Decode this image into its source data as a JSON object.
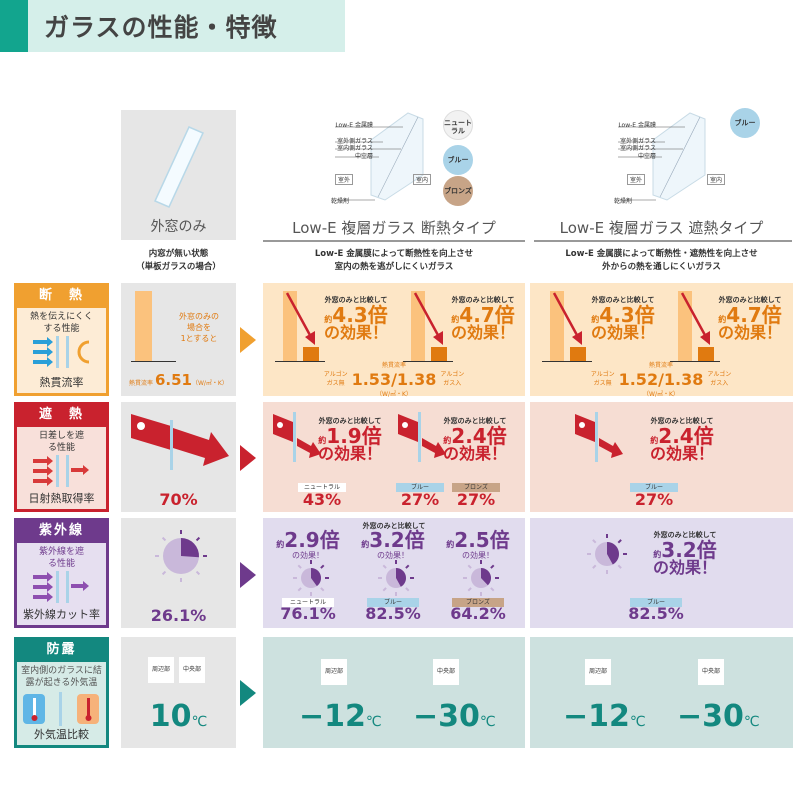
{
  "title": "ガラスの性能・特徴",
  "columns": [
    {
      "name": "外窓のみ",
      "desc": [
        "内窓が無い状態",
        "（単板ガラスの場合）"
      ]
    },
    {
      "name": "Low-E 複層ガラス 断熱タイプ",
      "desc": [
        "Low-E 金属膜によって断熱性を向上させ",
        "室内の熱を逃がしにくいガラス"
      ],
      "diagram": {
        "labels": [
          "Low-E 金属膜",
          "室外側ガラス",
          "室内側ガラス",
          "中空層",
          "室外",
          "室内",
          "乾燥剤"
        ],
        "colors": [
          {
            "label": "ニュートラル",
            "hex": "#f2f2f2"
          },
          {
            "label": "ブルー",
            "hex": "#a9d3e8"
          },
          {
            "label": "ブロンズ",
            "hex": "#c7a487"
          }
        ]
      }
    },
    {
      "name": "Low-E 複層ガラス 遮熱タイプ",
      "desc": [
        "Low-E 金属膜によって断熱性・遮熱性を向上させ",
        "外からの熱を通しにくいガラス"
      ],
      "diagram": {
        "labels": [
          "Low-E 金属膜",
          "室外側ガラス",
          "室内側ガラス",
          "中空層",
          "室外",
          "室内",
          "乾燥剤"
        ],
        "colors": [
          {
            "label": "ブルー",
            "hex": "#a9d3e8"
          }
        ]
      }
    }
  ],
  "compare": "外窓のみと比較して",
  "approx": "約",
  "effect": "の効果！",
  "rows": {
    "insulation": {
      "title": "断　熱",
      "body": "熱を伝えにくくする性能",
      "footer": "熱貫流率",
      "note": "※1※2",
      "color": "#f0a030",
      "single": {
        "text": [
          "外窓のみの",
          "場合を",
          "1とすると"
        ],
        "label": "熱貫流率",
        "value": "6.51",
        "note": "※3",
        "unit": "（W/㎡・K）"
      },
      "heat_ins": {
        "mult": [
          "4.3倍",
          "4.7倍"
        ],
        "label": "熱貫流率",
        "argon_none": "アルゴンガス無",
        "value": "1.53/1.38",
        "argon": "アルゴンガス入",
        "unit": "（W/㎡・K）"
      },
      "heat_shield": {
        "mult": [
          "4.3倍",
          "4.7倍"
        ],
        "label": "熱貫流率",
        "argon_none": "アルゴンガス無",
        "value": "1.52/1.38",
        "argon": "アルゴンガス入",
        "unit": "（W/㎡・K）"
      }
    },
    "shading": {
      "title": "遮　熱",
      "body": "日差しを遮る性能",
      "footer": "日射熱取得率",
      "note": "※4",
      "color": "#c9222e",
      "single": {
        "value": "70%"
      },
      "heat_ins": {
        "mult": [
          "1.9倍",
          "2.4倍"
        ],
        "tags": [
          "ニュートラル",
          "ブルー",
          "ブロンズ"
        ],
        "values": [
          "43%",
          "27%",
          "27%"
        ]
      },
      "heat_shield": {
        "mult": "2.4倍",
        "tag": "ブルー",
        "value": "27%"
      }
    },
    "uv": {
      "title": "紫外線",
      "body": "紫外線を遮る性能",
      "footer": "紫外線カット率",
      "note": "※5",
      "color": "#6e3a8c",
      "single": {
        "value": "26.1%"
      },
      "heat_ins": {
        "mult": [
          "2.9倍",
          "3.2倍",
          "2.5倍"
        ],
        "tags": [
          "ニュートラル",
          "ブルー",
          "ブロンズ"
        ],
        "values": [
          "76.1%",
          "82.5%",
          "64.2%"
        ]
      },
      "heat_shield": {
        "mult": "3.2倍",
        "tag": "ブルー",
        "value": "82.5%"
      }
    },
    "condensation": {
      "title": "防露",
      "body": "室内側のガラスに結露が起きる外気温",
      "footer": "外気温比較",
      "note": "※6",
      "color": "#13887f",
      "parts": [
        "周辺部",
        "中央部"
      ],
      "single": {
        "value": "10",
        "unit": "℃"
      },
      "heat_ins": {
        "values": [
          "−12",
          "−30"
        ],
        "unit": "℃"
      },
      "heat_shield": {
        "values": [
          "−12",
          "−30"
        ],
        "unit": "℃"
      }
    }
  }
}
